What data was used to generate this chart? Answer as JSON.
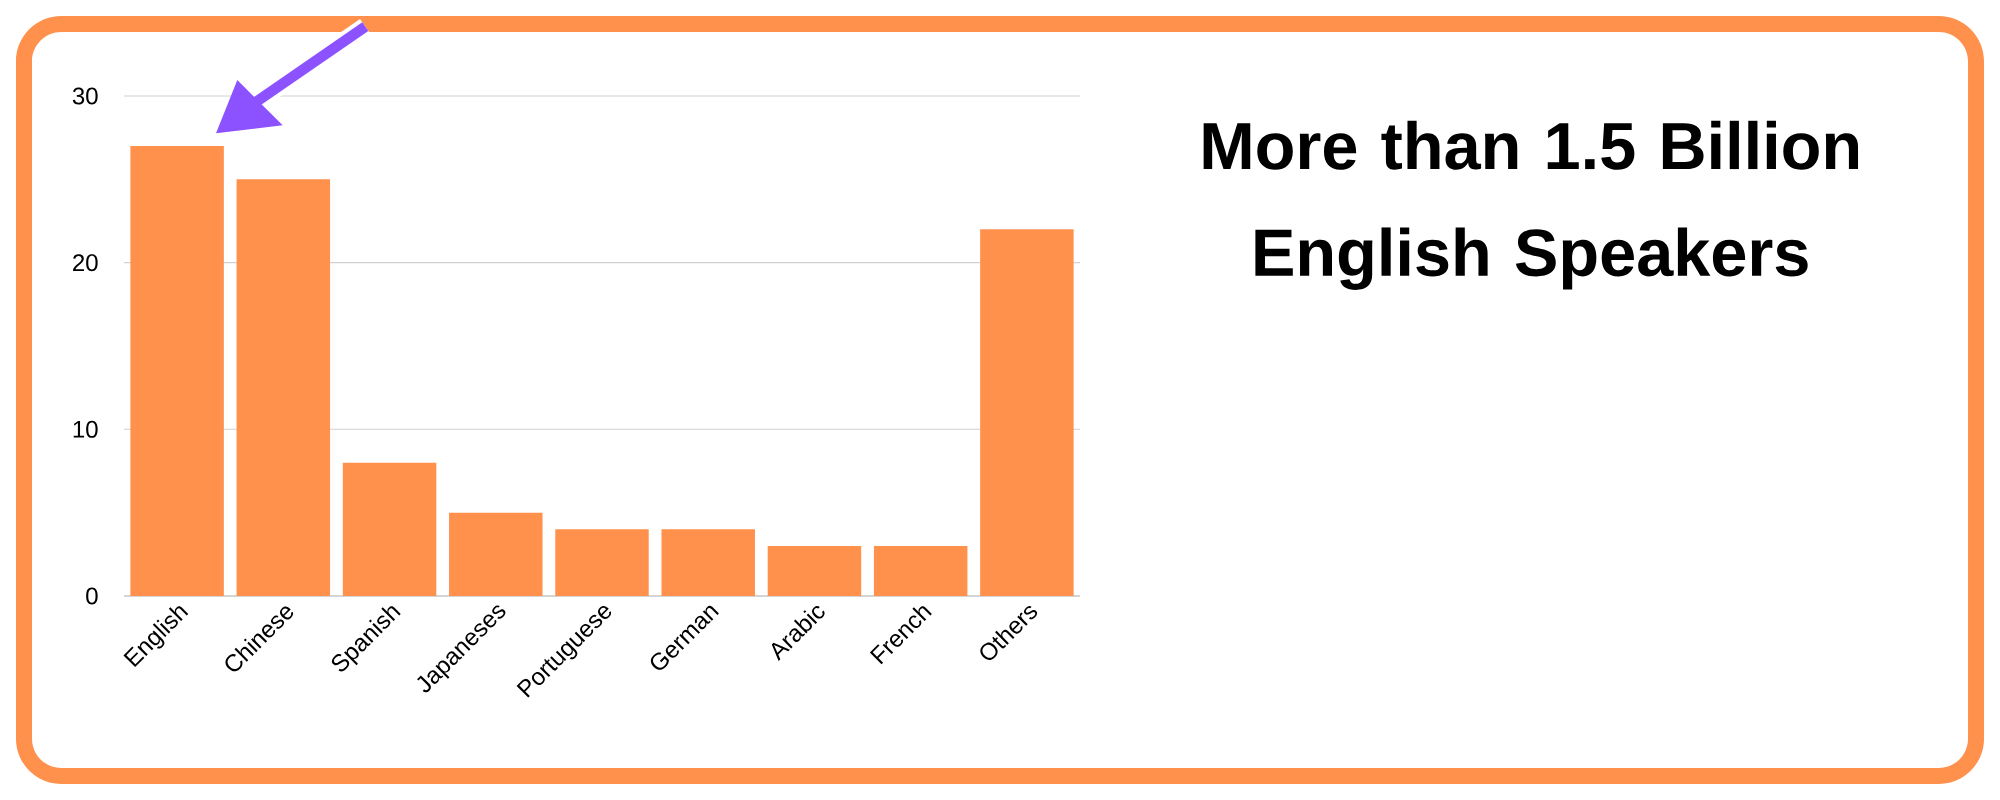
{
  "chart_data": {
    "type": "bar",
    "title": "More than 1.5 Billion English Speakers",
    "categories": [
      "English",
      "Chinese",
      "Spanish",
      "Japaneses",
      "Portuguese",
      "German",
      "Arabic",
      "French",
      "Others"
    ],
    "values": [
      27,
      25,
      8,
      5,
      4,
      4,
      3,
      3,
      22
    ],
    "color": "#ff914d",
    "ylim": [
      0,
      30
    ],
    "yticks": [
      0,
      10,
      20,
      30
    ],
    "grid": "y"
  }
}
